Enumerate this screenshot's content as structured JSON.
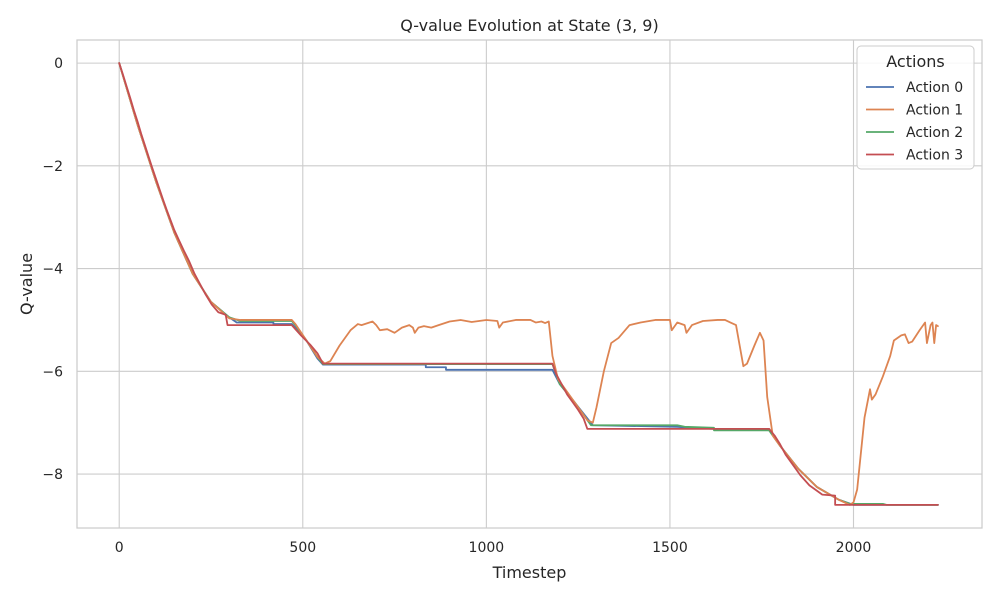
{
  "chart_data": {
    "type": "line",
    "title": "Q-value Evolution at State (3, 9)",
    "xlabel": "Timestep",
    "ylabel": "Q-value",
    "xlim": [
      -115,
      2350
    ],
    "ylim": [
      -9.05,
      0.45
    ],
    "xticks": [
      0,
      500,
      1000,
      1500,
      2000
    ],
    "yticks": [
      0,
      -2,
      -4,
      -6,
      -8
    ],
    "xtick_labels": [
      "0",
      "500",
      "1000",
      "1500",
      "2000"
    ],
    "ytick_labels": [
      "0",
      "−2",
      "−4",
      "−6",
      "−8"
    ],
    "grid": true,
    "legend": {
      "title": "Actions",
      "position": "top-right"
    },
    "series": [
      {
        "name": "Action 0",
        "color": "#4c72b0",
        "points": [
          [
            0,
            0
          ],
          [
            50,
            -1.2
          ],
          [
            100,
            -2.3
          ],
          [
            150,
            -3.3
          ],
          [
            200,
            -4.1
          ],
          [
            250,
            -4.65
          ],
          [
            300,
            -4.95
          ],
          [
            320,
            -5.05
          ],
          [
            420,
            -5.05
          ],
          [
            420,
            -5.08
          ],
          [
            470,
            -5.08
          ],
          [
            480,
            -5.15
          ],
          [
            510,
            -5.4
          ],
          [
            540,
            -5.75
          ],
          [
            555,
            -5.87
          ],
          [
            835,
            -5.87
          ],
          [
            835,
            -5.92
          ],
          [
            890,
            -5.92
          ],
          [
            890,
            -5.97
          ],
          [
            1180,
            -5.97
          ],
          [
            1200,
            -6.25
          ],
          [
            1240,
            -6.6
          ],
          [
            1290,
            -7.05
          ],
          [
            1520,
            -7.08
          ],
          [
            1560,
            -7.1
          ],
          [
            1620,
            -7.12
          ],
          [
            1770,
            -7.12
          ],
          [
            1800,
            -7.45
          ],
          [
            1850,
            -7.9
          ],
          [
            1900,
            -8.25
          ],
          [
            1960,
            -8.5
          ],
          [
            2000,
            -8.6
          ],
          [
            2230,
            -8.6
          ]
        ]
      },
      {
        "name": "Action 1",
        "color": "#dd8452",
        "points": [
          [
            0,
            0
          ],
          [
            50,
            -1.2
          ],
          [
            100,
            -2.3
          ],
          [
            150,
            -3.3
          ],
          [
            200,
            -4.1
          ],
          [
            250,
            -4.65
          ],
          [
            300,
            -4.97
          ],
          [
            330,
            -5.0
          ],
          [
            470,
            -5.0
          ],
          [
            480,
            -5.08
          ],
          [
            510,
            -5.4
          ],
          [
            540,
            -5.72
          ],
          [
            560,
            -5.85
          ],
          [
            575,
            -5.8
          ],
          [
            600,
            -5.5
          ],
          [
            630,
            -5.2
          ],
          [
            650,
            -5.08
          ],
          [
            660,
            -5.1
          ],
          [
            690,
            -5.03
          ],
          [
            700,
            -5.1
          ],
          [
            710,
            -5.2
          ],
          [
            730,
            -5.18
          ],
          [
            750,
            -5.25
          ],
          [
            770,
            -5.15
          ],
          [
            790,
            -5.1
          ],
          [
            800,
            -5.15
          ],
          [
            805,
            -5.25
          ],
          [
            815,
            -5.15
          ],
          [
            830,
            -5.12
          ],
          [
            850,
            -5.15
          ],
          [
            870,
            -5.1
          ],
          [
            900,
            -5.03
          ],
          [
            930,
            -5.0
          ],
          [
            960,
            -5.04
          ],
          [
            1000,
            -5.0
          ],
          [
            1030,
            -5.02
          ],
          [
            1035,
            -5.15
          ],
          [
            1045,
            -5.05
          ],
          [
            1080,
            -5.0
          ],
          [
            1120,
            -5.0
          ],
          [
            1135,
            -5.05
          ],
          [
            1150,
            -5.03
          ],
          [
            1160,
            -5.06
          ],
          [
            1170,
            -5.03
          ],
          [
            1180,
            -5.7
          ],
          [
            1195,
            -6.15
          ],
          [
            1240,
            -6.6
          ],
          [
            1275,
            -6.95
          ],
          [
            1290,
            -7.0
          ],
          [
            1300,
            -6.7
          ],
          [
            1320,
            -6.0
          ],
          [
            1340,
            -5.45
          ],
          [
            1360,
            -5.35
          ],
          [
            1390,
            -5.1
          ],
          [
            1420,
            -5.05
          ],
          [
            1460,
            -5.0
          ],
          [
            1500,
            -5.0
          ],
          [
            1505,
            -5.2
          ],
          [
            1520,
            -5.05
          ],
          [
            1540,
            -5.1
          ],
          [
            1545,
            -5.25
          ],
          [
            1560,
            -5.1
          ],
          [
            1590,
            -5.02
          ],
          [
            1630,
            -5.0
          ],
          [
            1650,
            -5.0
          ],
          [
            1665,
            -5.05
          ],
          [
            1680,
            -5.1
          ],
          [
            1690,
            -5.5
          ],
          [
            1700,
            -5.9
          ],
          [
            1710,
            -5.85
          ],
          [
            1730,
            -5.5
          ],
          [
            1745,
            -5.25
          ],
          [
            1755,
            -5.4
          ],
          [
            1765,
            -6.5
          ],
          [
            1780,
            -7.25
          ],
          [
            1800,
            -7.45
          ],
          [
            1850,
            -7.9
          ],
          [
            1900,
            -8.25
          ],
          [
            1960,
            -8.5
          ],
          [
            1990,
            -8.6
          ],
          [
            2000,
            -8.55
          ],
          [
            2010,
            -8.3
          ],
          [
            2020,
            -7.6
          ],
          [
            2030,
            -6.9
          ],
          [
            2045,
            -6.35
          ],
          [
            2050,
            -6.55
          ],
          [
            2060,
            -6.45
          ],
          [
            2080,
            -6.1
          ],
          [
            2100,
            -5.7
          ],
          [
            2110,
            -5.4
          ],
          [
            2130,
            -5.3
          ],
          [
            2140,
            -5.28
          ],
          [
            2150,
            -5.45
          ],
          [
            2160,
            -5.42
          ],
          [
            2180,
            -5.2
          ],
          [
            2195,
            -5.05
          ],
          [
            2200,
            -5.45
          ],
          [
            2210,
            -5.1
          ],
          [
            2215,
            -5.05
          ],
          [
            2220,
            -5.45
          ],
          [
            2225,
            -5.1
          ],
          [
            2230,
            -5.12
          ]
        ]
      },
      {
        "name": "Action 2",
        "color": "#55a868",
        "points": [
          [
            0,
            0
          ],
          [
            50,
            -1.2
          ],
          [
            100,
            -2.3
          ],
          [
            150,
            -3.3
          ],
          [
            200,
            -4.1
          ],
          [
            250,
            -4.65
          ],
          [
            300,
            -4.95
          ],
          [
            330,
            -5.02
          ],
          [
            470,
            -5.02
          ],
          [
            480,
            -5.1
          ],
          [
            510,
            -5.4
          ],
          [
            540,
            -5.72
          ],
          [
            555,
            -5.86
          ],
          [
            1180,
            -5.86
          ],
          [
            1200,
            -6.25
          ],
          [
            1240,
            -6.6
          ],
          [
            1285,
            -7.05
          ],
          [
            1520,
            -7.05
          ],
          [
            1540,
            -7.08
          ],
          [
            1620,
            -7.1
          ],
          [
            1620,
            -7.15
          ],
          [
            1770,
            -7.15
          ],
          [
            1800,
            -7.45
          ],
          [
            1850,
            -7.9
          ],
          [
            1900,
            -8.25
          ],
          [
            1960,
            -8.5
          ],
          [
            1990,
            -8.58
          ],
          [
            2080,
            -8.58
          ],
          [
            2090,
            -8.6
          ],
          [
            2230,
            -8.6
          ]
        ]
      },
      {
        "name": "Action 3",
        "color": "#c44e52",
        "points": [
          [
            0,
            0
          ],
          [
            10,
            -0.22
          ],
          [
            20,
            -0.45
          ],
          [
            30,
            -0.68
          ],
          [
            40,
            -0.92
          ],
          [
            50,
            -1.14
          ],
          [
            60,
            -1.38
          ],
          [
            70,
            -1.6
          ],
          [
            80,
            -1.82
          ],
          [
            90,
            -2.04
          ],
          [
            100,
            -2.25
          ],
          [
            110,
            -2.46
          ],
          [
            120,
            -2.67
          ],
          [
            130,
            -2.87
          ],
          [
            140,
            -3.06
          ],
          [
            150,
            -3.25
          ],
          [
            163,
            -3.45
          ],
          [
            176,
            -3.65
          ],
          [
            190,
            -3.85
          ],
          [
            205,
            -4.1
          ],
          [
            220,
            -4.3
          ],
          [
            235,
            -4.5
          ],
          [
            252,
            -4.7
          ],
          [
            270,
            -4.85
          ],
          [
            290,
            -4.9
          ],
          [
            295,
            -5.1
          ],
          [
            470,
            -5.1
          ],
          [
            495,
            -5.3
          ],
          [
            520,
            -5.48
          ],
          [
            540,
            -5.65
          ],
          [
            555,
            -5.85
          ],
          [
            1180,
            -5.85
          ],
          [
            1190,
            -6.05
          ],
          [
            1205,
            -6.25
          ],
          [
            1220,
            -6.45
          ],
          [
            1235,
            -6.6
          ],
          [
            1250,
            -6.75
          ],
          [
            1265,
            -6.92
          ],
          [
            1275,
            -7.12
          ],
          [
            1770,
            -7.12
          ],
          [
            1785,
            -7.25
          ],
          [
            1800,
            -7.42
          ],
          [
            1815,
            -7.62
          ],
          [
            1835,
            -7.82
          ],
          [
            1855,
            -8.02
          ],
          [
            1880,
            -8.22
          ],
          [
            1915,
            -8.4
          ],
          [
            1950,
            -8.42
          ],
          [
            1950,
            -8.6
          ],
          [
            2230,
            -8.6
          ]
        ]
      }
    ]
  }
}
